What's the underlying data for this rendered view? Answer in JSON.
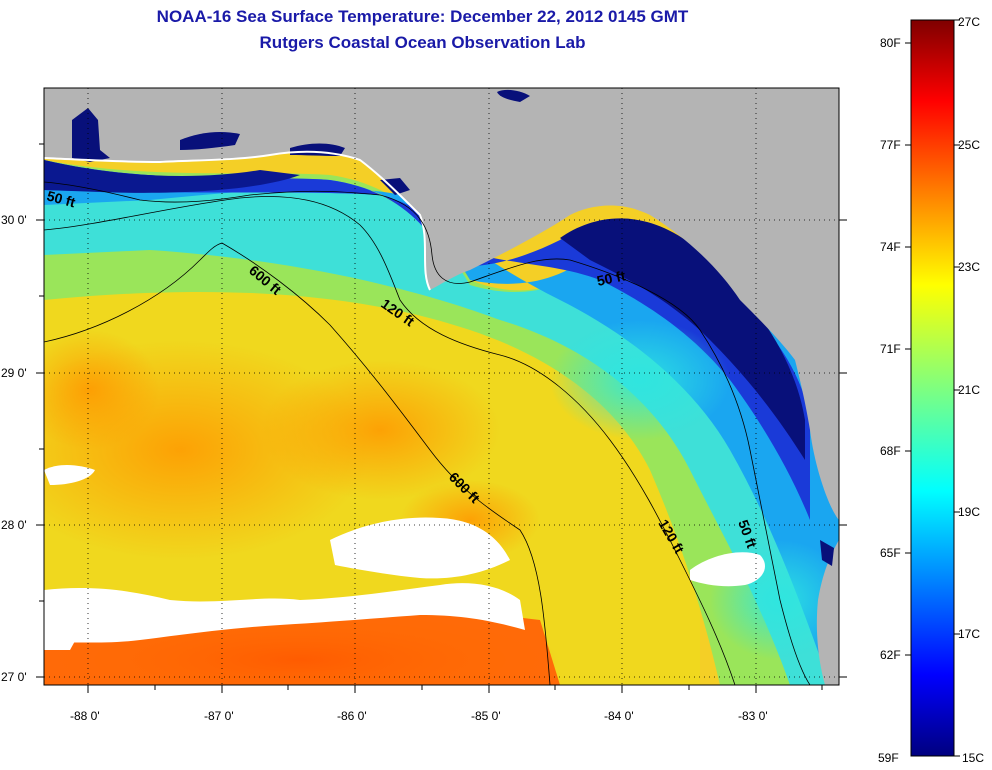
{
  "title": "NOAA-16 Sea Surface Temperature:  December 22, 2012 0145 GMT",
  "subtitle": "Rutgers Coastal Ocean Observation Lab",
  "axes": {
    "x_ticks": [
      "-88 0'",
      "-87 0'",
      "-86 0'",
      "-85 0'",
      "-84 0'",
      "-83 0'"
    ],
    "y_ticks": [
      "30 0'",
      "29 0'",
      "28 0'",
      "27 0'"
    ]
  },
  "contours": {
    "c50_west": "50 ft",
    "c600_north": "600 ft",
    "c120_north": "120 ft",
    "c50_east": "50 ft",
    "c600_south": "600 ft",
    "c120_south": "120 ft",
    "c50_south": "50 ft"
  },
  "colorbar": {
    "f_labels": [
      "80F",
      "77F",
      "74F",
      "71F",
      "68F",
      "65F",
      "62F",
      "59F"
    ],
    "c_labels": [
      "27C",
      "25C",
      "23C",
      "21C",
      "19C",
      "17C",
      "15C"
    ]
  },
  "colors": {
    "land": "#b4b4b4",
    "title": "#1a1aa8",
    "cloud": "#ffffff"
  }
}
